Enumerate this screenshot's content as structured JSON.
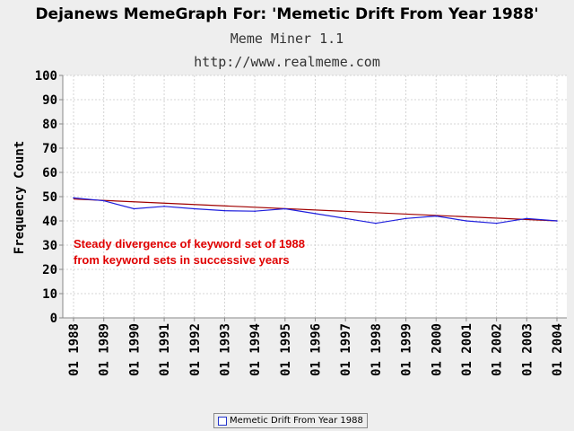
{
  "chart_data": {
    "type": "line",
    "title": "Dejanews MemeGraph For: 'Memetic Drift From Year 1988'",
    "subtitle_1": "Meme Miner 1.1",
    "subtitle_2": "http://www.realmeme.com",
    "ylabel": "Frequency Count",
    "xlabel": "",
    "ylim": [
      0,
      100
    ],
    "y_ticks": [
      0,
      10,
      20,
      30,
      40,
      50,
      60,
      70,
      80,
      90,
      100
    ],
    "grid": true,
    "categories": [
      "01 1988",
      "01 1989",
      "01 1990",
      "01 1991",
      "01 1992",
      "01 1993",
      "01 1994",
      "01 1995",
      "01 1996",
      "01 1997",
      "01 1998",
      "01 1999",
      "01 2000",
      "01 2001",
      "01 2002",
      "01 2003",
      "01 2004"
    ],
    "series": [
      {
        "name": "Memetic Drift From Year 1988",
        "color": "#1f1fdd",
        "values": [
          49.5,
          48.3,
          45,
          46,
          45,
          44.2,
          44,
          45,
          43,
          41,
          39,
          41,
          42,
          40,
          39,
          41,
          40
        ]
      }
    ],
    "trendline": {
      "color": "#a00000",
      "start": 49,
      "end": 40
    },
    "annotation": {
      "line1": "Steady divergence of keyword set of 1988",
      "line2": "from keyword sets in successive years",
      "color": "#e00000"
    },
    "legend": {
      "position": "bottom-center",
      "label": "Memetic Drift From Year 1988"
    }
  }
}
